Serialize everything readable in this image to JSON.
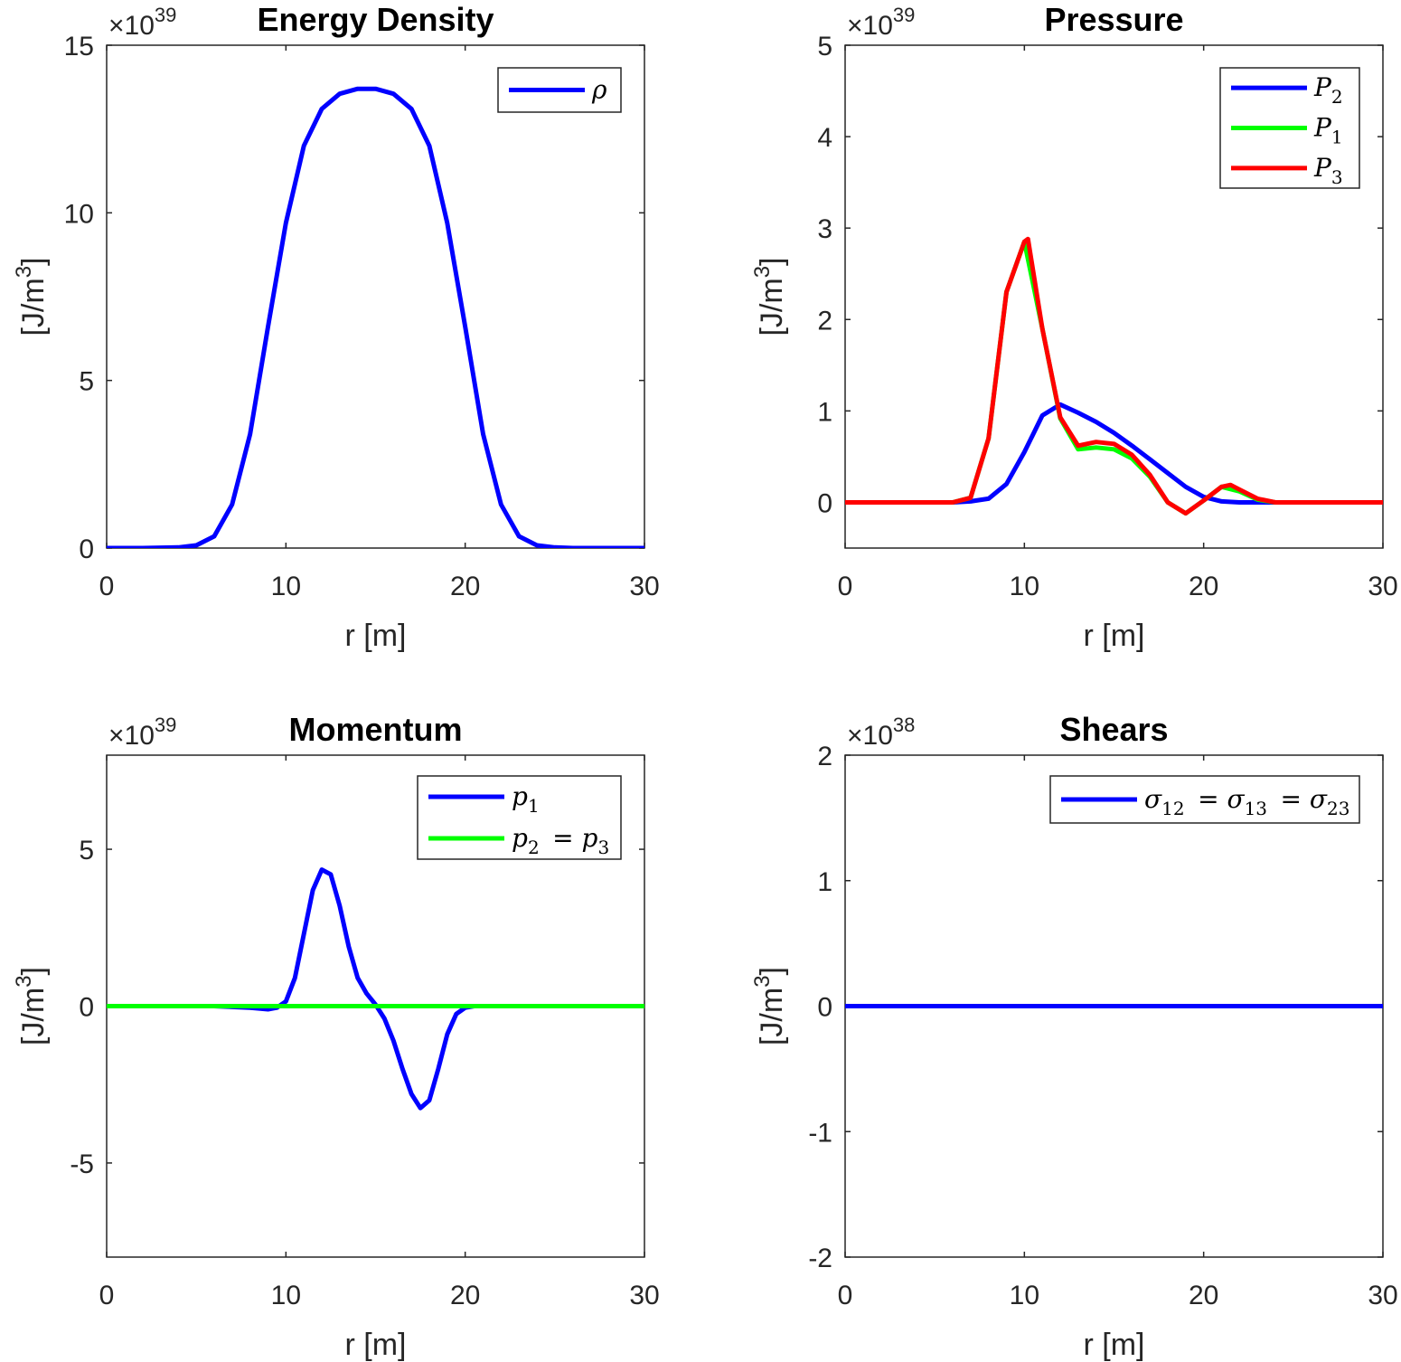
{
  "chart_data": [
    {
      "type": "line",
      "title": "Energy Density",
      "xlabel": "r [m]",
      "ylabel_main": "[J/m",
      "ylabel_sup": "3",
      "ylabel_close": "]",
      "multiplier_prefix": "×10",
      "multiplier_exp": "39",
      "xlim": [
        0,
        30
      ],
      "ylim": [
        0,
        15
      ],
      "xticks": [
        0,
        10,
        20,
        30
      ],
      "xtick_labels": [
        "0",
        "10",
        "20",
        "30"
      ],
      "yticks": [
        0,
        5,
        10,
        15
      ],
      "ytick_labels": [
        "0",
        "5",
        "10",
        "15"
      ],
      "legend_position": "top-right",
      "series": [
        {
          "name": "ρ",
          "color": "#0000ff",
          "x": [
            0,
            2,
            4,
            5,
            6,
            7,
            8,
            9,
            10,
            11,
            12,
            13,
            14,
            15,
            16,
            17,
            18,
            19,
            20,
            21,
            22,
            23,
            24,
            25,
            26,
            28,
            30
          ],
          "y": [
            0,
            0,
            0.02,
            0.08,
            0.35,
            1.3,
            3.4,
            6.6,
            9.7,
            12.0,
            13.1,
            13.55,
            13.7,
            13.7,
            13.55,
            13.1,
            12.0,
            9.7,
            6.6,
            3.4,
            1.3,
            0.35,
            0.08,
            0.02,
            0,
            0,
            0
          ]
        }
      ]
    },
    {
      "type": "line",
      "title": "Pressure",
      "xlabel": "r [m]",
      "ylabel_main": "[J/m",
      "ylabel_sup": "3",
      "ylabel_close": "]",
      "multiplier_prefix": "×10",
      "multiplier_exp": "39",
      "xlim": [
        0,
        30
      ],
      "ylim": [
        -0.5,
        5
      ],
      "xticks": [
        0,
        10,
        20,
        30
      ],
      "xtick_labels": [
        "0",
        "10",
        "20",
        "30"
      ],
      "yticks": [
        0,
        1,
        2,
        3,
        4,
        5
      ],
      "ytick_labels": [
        "0",
        "1",
        "2",
        "3",
        "4",
        "5"
      ],
      "legend_position": "top-right",
      "series": [
        {
          "name": "P",
          "name_sub": "2",
          "color": "#0000ff",
          "x": [
            0,
            6,
            7,
            8,
            9,
            10,
            11,
            12,
            13,
            14,
            15,
            16,
            17,
            18,
            19,
            20,
            21,
            22,
            23,
            24,
            30
          ],
          "y": [
            0,
            0,
            0.01,
            0.04,
            0.2,
            0.55,
            0.95,
            1.07,
            0.98,
            0.88,
            0.76,
            0.62,
            0.47,
            0.32,
            0.17,
            0.06,
            0.01,
            0,
            0,
            0,
            0
          ]
        },
        {
          "name": "P",
          "name_sub": "1",
          "color": "#00ff00",
          "x": [
            0,
            6,
            7,
            8,
            9,
            10,
            11,
            12,
            13,
            14,
            15,
            16,
            17,
            18,
            19,
            20,
            21,
            22,
            23,
            24,
            30
          ],
          "y": [
            0,
            0,
            0.05,
            0.7,
            2.3,
            2.85,
            1.9,
            0.92,
            0.58,
            0.6,
            0.58,
            0.48,
            0.28,
            0.0,
            -0.12,
            0.02,
            0.17,
            0.12,
            0.03,
            0,
            0
          ]
        },
        {
          "name": "P",
          "name_sub": "3",
          "color": "#ff0000",
          "x": [
            0,
            6,
            7,
            8,
            9,
            10,
            10.2,
            11,
            12,
            13,
            14,
            15,
            16,
            17,
            18,
            19,
            20,
            21,
            21.5,
            22,
            23,
            24,
            30
          ],
          "y": [
            0,
            0,
            0.05,
            0.7,
            2.3,
            2.85,
            2.88,
            1.9,
            0.93,
            0.62,
            0.66,
            0.64,
            0.52,
            0.3,
            0.0,
            -0.12,
            0.02,
            0.17,
            0.19,
            0.14,
            0.04,
            0,
            0
          ]
        }
      ]
    },
    {
      "type": "line",
      "title": "Momentum",
      "xlabel": "r [m]",
      "ylabel_main": "[J/m",
      "ylabel_sup": "3",
      "ylabel_close": "]",
      "multiplier_prefix": "×10",
      "multiplier_exp": "39",
      "xlim": [
        0,
        30
      ],
      "ylim": [
        -8,
        8
      ],
      "xticks": [
        0,
        10,
        20,
        30
      ],
      "xtick_labels": [
        "0",
        "10",
        "20",
        "30"
      ],
      "yticks": [
        -5,
        0,
        5
      ],
      "ytick_labels": [
        "-5",
        "0",
        "5"
      ],
      "legend_position": "top-right",
      "series": [
        {
          "name": "p",
          "name_sub": "1",
          "color": "#0000ff",
          "x": [
            0,
            6,
            8,
            9,
            9.5,
            10,
            10.5,
            11,
            11.5,
            12,
            12.5,
            13,
            13.5,
            14,
            14.5,
            15,
            15.5,
            16,
            16.5,
            17,
            17.5,
            18,
            18.5,
            19,
            19.5,
            20,
            20.5,
            21,
            30
          ],
          "y": [
            0,
            0,
            -0.05,
            -0.1,
            -0.05,
            0.15,
            0.9,
            2.3,
            3.7,
            4.35,
            4.2,
            3.2,
            1.9,
            0.9,
            0.4,
            0.05,
            -0.4,
            -1.1,
            -2.0,
            -2.8,
            -3.25,
            -3.0,
            -2.0,
            -0.9,
            -0.25,
            -0.05,
            0,
            0,
            0
          ]
        },
        {
          "name": "p",
          "name_sub": "2",
          "name_eq": "=",
          "name2": "p",
          "name2_sub": "3",
          "color": "#00ff00",
          "x": [
            0,
            30
          ],
          "y": [
            0,
            0
          ]
        }
      ]
    },
    {
      "type": "line",
      "title": "Shears",
      "xlabel": "r [m]",
      "ylabel_main": "[J/m",
      "ylabel_sup": "3",
      "ylabel_close": "]",
      "multiplier_prefix": "×10",
      "multiplier_exp": "38",
      "xlim": [
        0,
        30
      ],
      "ylim": [
        -2,
        2
      ],
      "xticks": [
        0,
        10,
        20,
        30
      ],
      "xtick_labels": [
        "0",
        "10",
        "20",
        "30"
      ],
      "yticks": [
        -2,
        -1,
        0,
        1,
        2
      ],
      "ytick_labels": [
        "-2",
        "-1",
        "0",
        "1",
        "2"
      ],
      "legend_position": "top-right",
      "series": [
        {
          "name": "σ",
          "name_sub": "12",
          "name_eq": "=",
          "name2": "σ",
          "name2_sub": "13",
          "name_eq2": "=",
          "name3": "σ",
          "name3_sub": "23",
          "color": "#0000ff",
          "x": [
            0,
            30
          ],
          "y": [
            0,
            0
          ]
        }
      ]
    }
  ]
}
